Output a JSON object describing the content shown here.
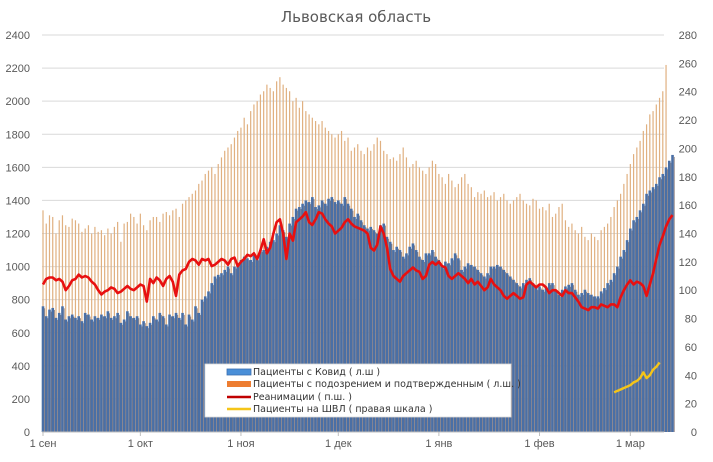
{
  "chart_data": {
    "type": "bar",
    "title": "Львовская область",
    "xlabel": "",
    "ylabel_left": "",
    "ylabel_right": "",
    "ylim_left": [
      0,
      2400
    ],
    "ylim_right": [
      0,
      280
    ],
    "left_ticks": [
      "0",
      "200",
      "400",
      "600",
      "800",
      "1000",
      "1200",
      "1400",
      "1600",
      "1800",
      "2000",
      "2200",
      "2400"
    ],
    "right_ticks": [
      "0",
      "20",
      "40",
      "60",
      "80",
      "100",
      "120",
      "140",
      "160",
      "180",
      "200",
      "220",
      "240",
      "260",
      "280"
    ],
    "x_tick_labels": [
      {
        "label": "1 сен",
        "day": 0
      },
      {
        "label": "1 окт",
        "day": 30
      },
      {
        "label": "1 ноя",
        "day": 61
      },
      {
        "label": "1 дек",
        "day": 91
      },
      {
        "label": "1 янв",
        "day": 122
      },
      {
        "label": "1 фев",
        "day": 153
      },
      {
        "label": "1 мар",
        "day": 181
      }
    ],
    "grid": true,
    "legend_position": "bottom-center inside",
    "colors": {
      "covid": "#4a6fa5",
      "suspected": "#e0b080",
      "icu": "#e81010",
      "ventilator": "#f5c518",
      "grid": "#d9d9d9",
      "text": "#595959"
    },
    "series": [
      {
        "name": "Пациенты с Ковид ( л.ш )",
        "type": "bar",
        "axis": "left",
        "start_day": 0,
        "values": [
          760,
          700,
          740,
          750,
          690,
          720,
          760,
          680,
          700,
          710,
          690,
          700,
          670,
          720,
          710,
          680,
          700,
          690,
          710,
          700,
          730,
          690,
          700,
          720,
          660,
          680,
          730,
          700,
          690,
          700,
          650,
          670,
          640,
          660,
          700,
          680,
          720,
          700,
          650,
          710,
          700,
          720,
          690,
          720,
          650,
          710,
          680,
          760,
          720,
          800,
          820,
          850,
          900,
          940,
          950,
          960,
          980,
          1000,
          960,
          1000,
          1020,
          1040,
          1060,
          1050,
          1040,
          1080,
          1050,
          1100,
          1100,
          1120,
          1150,
          1160,
          1200,
          1250,
          1220,
          1180,
          1260,
          1300,
          1350,
          1360,
          1380,
          1400,
          1390,
          1420,
          1360,
          1370,
          1400,
          1380,
          1410,
          1420,
          1390,
          1400,
          1380,
          1420,
          1380,
          1350,
          1300,
          1320,
          1280,
          1250,
          1230,
          1240,
          1220,
          1200,
          1250,
          1260,
          1180,
          1150,
          1100,
          1120,
          1100,
          1060,
          1080,
          1120,
          1140,
          1100,
          1060,
          1040,
          1080,
          1080,
          1100,
          1060,
          1040,
          1000,
          1030,
          1020,
          1050,
          1080,
          1050,
          980,
          1000,
          1020,
          1010,
          1000,
          980,
          960,
          940,
          960,
          1000,
          1000,
          1010,
          1000,
          980,
          960,
          940,
          920,
          900,
          880,
          900,
          920,
          930,
          900,
          870,
          880,
          860,
          870,
          900,
          900,
          850,
          830,
          860,
          880,
          890,
          900,
          860,
          830,
          840,
          860,
          840,
          830,
          820,
          820,
          850,
          870,
          900,
          920,
          960,
          1000,
          1060,
          1100,
          1160,
          1230,
          1280,
          1300,
          1340,
          1380,
          1440,
          1460,
          1480,
          1500,
          1540,
          1560,
          1600,
          1640,
          1675
        ]
      },
      {
        "name": "Пациенты с подозрением и подтвержденным ( л.ш. )",
        "type": "bar",
        "axis": "left",
        "start_day": 0,
        "values": [
          1340,
          1260,
          1310,
          1300,
          1200,
          1280,
          1310,
          1250,
          1240,
          1290,
          1280,
          1260,
          1210,
          1230,
          1250,
          1200,
          1240,
          1210,
          1220,
          1190,
          1230,
          1200,
          1240,
          1270,
          1150,
          1260,
          1270,
          1320,
          1300,
          1260,
          1320,
          1250,
          1220,
          1280,
          1300,
          1300,
          1270,
          1320,
          1330,
          1310,
          1340,
          1350,
          1300,
          1380,
          1400,
          1420,
          1440,
          1460,
          1500,
          1520,
          1560,
          1580,
          1600,
          1560,
          1620,
          1660,
          1700,
          1720,
          1740,
          1780,
          1820,
          1840,
          1900,
          1860,
          1940,
          1980,
          2000,
          2040,
          2060,
          2100,
          2080,
          2060,
          2120,
          2145,
          2100,
          2080,
          2060,
          2000,
          2020,
          1960,
          2000,
          1940,
          1920,
          1900,
          1880,
          1860,
          1880,
          1840,
          1820,
          1800,
          1780,
          1800,
          1820,
          1760,
          1780,
          1700,
          1720,
          1740,
          1700,
          1680,
          1720,
          1700,
          1740,
          1780,
          1760,
          1700,
          1680,
          1650,
          1660,
          1640,
          1680,
          1720,
          1660,
          1600,
          1620,
          1640,
          1600,
          1580,
          1560,
          1600,
          1640,
          1620,
          1560,
          1540,
          1500,
          1560,
          1520,
          1480,
          1500,
          1540,
          1560,
          1500,
          1480,
          1420,
          1450,
          1440,
          1460,
          1420,
          1430,
          1450,
          1400,
          1420,
          1440,
          1400,
          1380,
          1400,
          1420,
          1440,
          1400,
          1380,
          1370,
          1410,
          1400,
          1350,
          1360,
          1340,
          1380,
          1300,
          1320,
          1360,
          1380,
          1280,
          1240,
          1260,
          1220,
          1200,
          1240,
          1180,
          1160,
          1200,
          1180,
          1160,
          1220,
          1240,
          1260,
          1300,
          1360,
          1400,
          1440,
          1500,
          1560,
          1620,
          1680,
          1720,
          1760,
          1820,
          1860,
          1920,
          1940,
          1980,
          2020,
          2060,
          2219
        ]
      },
      {
        "name": "Реанимации ( п.ш. )",
        "type": "line",
        "axis": "right",
        "start_day": 0,
        "values": [
          104,
          108,
          109,
          109,
          107,
          108,
          106,
          100,
          103,
          107,
          108,
          111,
          109,
          110,
          109,
          106,
          104,
          100,
          97,
          99,
          100,
          102,
          101,
          98,
          99,
          101,
          103,
          101,
          100,
          102,
          104,
          103,
          92,
          108,
          105,
          109,
          107,
          103,
          108,
          110,
          106,
          96,
          111,
          114,
          115,
          120,
          122,
          121,
          118,
          122,
          121,
          122,
          117,
          118,
          120,
          122,
          121,
          118,
          122,
          123,
          117,
          120,
          122,
          125,
          124,
          126,
          122,
          128,
          136,
          126,
          130,
          140,
          148,
          150,
          140,
          122,
          140,
          135,
          148,
          150,
          152,
          155,
          148,
          146,
          150,
          155,
          154,
          150,
          147,
          145,
          140,
          142,
          144,
          148,
          150,
          147,
          145,
          144,
          143,
          142,
          140,
          130,
          128,
          132,
          145,
          140,
          130,
          115,
          110,
          108,
          106,
          110,
          112,
          114,
          116,
          114,
          113,
          108,
          110,
          118,
          120,
          118,
          120,
          117,
          116,
          110,
          108,
          110,
          112,
          110,
          108,
          105,
          108,
          104,
          106,
          103,
          100,
          102,
          108,
          104,
          102,
          100,
          96,
          94,
          96,
          98,
          96,
          94,
          95,
          104,
          106,
          104,
          102,
          104,
          104,
          102,
          98,
          100,
          100,
          98,
          96,
          100,
          98,
          98,
          95,
          92,
          88,
          87,
          86,
          88,
          88,
          87,
          90,
          89,
          88,
          90,
          90,
          88,
          95,
          100,
          104,
          107,
          104,
          106,
          105,
          103,
          96,
          104,
          112,
          122,
          132,
          138,
          145,
          150,
          153
        ]
      },
      {
        "name": "Пациенты на ШВЛ ( правая шкала )",
        "type": "line",
        "axis": "right",
        "start_day": 176,
        "values": [
          28,
          29,
          30,
          31,
          32,
          33,
          35,
          36,
          38,
          42,
          38,
          40,
          44,
          46,
          49
        ]
      }
    ]
  }
}
